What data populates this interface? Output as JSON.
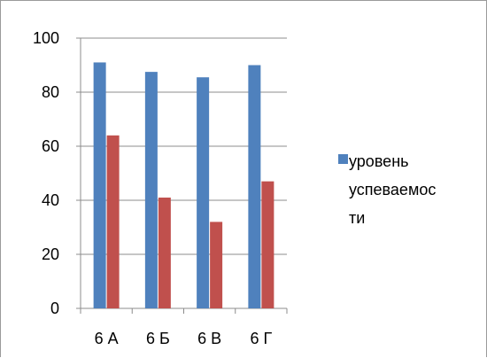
{
  "chart_data": {
    "type": "bar",
    "categories": [
      "6 А",
      "6 Б",
      "6 В",
      "6 Г"
    ],
    "series": [
      {
        "name": "уровень успеваемости",
        "legend_lines": [
          "уровень",
          "успеваемос",
          "ти"
        ],
        "color": "#4f81bd",
        "values": [
          91,
          87.5,
          85.5,
          90
        ]
      },
      {
        "color": "#c0504d",
        "values": [
          64,
          41,
          32,
          47
        ]
      }
    ],
    "y_ticks": [
      "0",
      "20",
      "40",
      "60",
      "80",
      "100"
    ],
    "ylim": [
      0,
      100
    ],
    "grid": true,
    "legend_position": "right"
  }
}
